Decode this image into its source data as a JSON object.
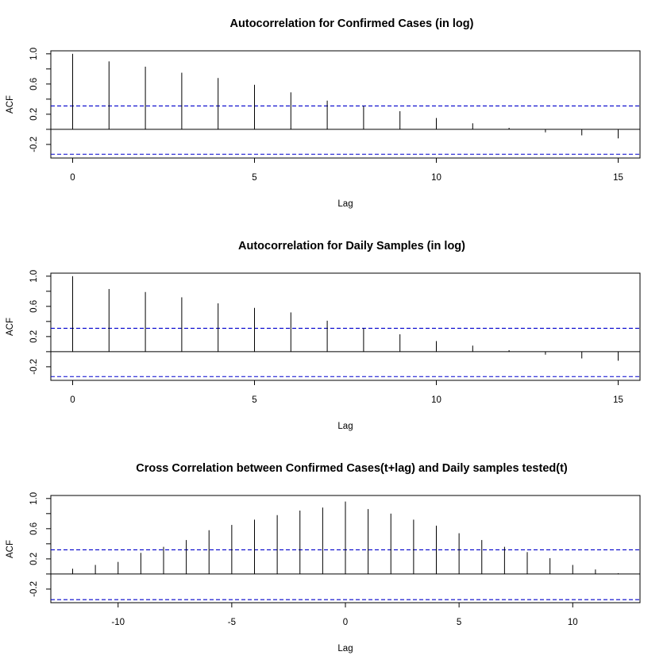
{
  "chart_data": [
    {
      "type": "bar",
      "subtype": "acf-stem",
      "title": "Autocorrelation for Confirmed Cases (in log)",
      "xlabel": "Lag",
      "ylabel": "ACF",
      "xlim": [
        -0.6,
        15.6
      ],
      "ylim": [
        -0.38,
        1.04
      ],
      "xticks": [
        0,
        5,
        10,
        15
      ],
      "xtick_labels": [
        "0",
        "5",
        "10",
        "15"
      ],
      "yticks": [
        -0.2,
        0.2,
        0.6,
        1.0
      ],
      "ytick_labels": [
        "-0.2",
        "0.2",
        "0.6",
        "1.0"
      ],
      "confidence_band": [
        0.31,
        -0.33
      ],
      "x": [
        0,
        1,
        2,
        3,
        4,
        5,
        6,
        7,
        8,
        9,
        10,
        11,
        12,
        13,
        14,
        15
      ],
      "values": [
        1.0,
        0.9,
        0.83,
        0.75,
        0.68,
        0.59,
        0.49,
        0.38,
        0.31,
        0.24,
        0.15,
        0.08,
        0.02,
        -0.04,
        -0.08,
        -0.12
      ]
    },
    {
      "type": "bar",
      "subtype": "acf-stem",
      "title": "Autocorrelation for Daily Samples (in log)",
      "xlabel": "Lag",
      "ylabel": "ACF",
      "xlim": [
        -0.6,
        15.6
      ],
      "ylim": [
        -0.38,
        1.04
      ],
      "xticks": [
        0,
        5,
        10,
        15
      ],
      "xtick_labels": [
        "0",
        "5",
        "10",
        "15"
      ],
      "yticks": [
        -0.2,
        0.2,
        0.6,
        1.0
      ],
      "ytick_labels": [
        "-0.2",
        "0.2",
        "0.6",
        "1.0"
      ],
      "confidence_band": [
        0.31,
        -0.33
      ],
      "x": [
        0,
        1,
        2,
        3,
        4,
        5,
        6,
        7,
        8,
        9,
        10,
        11,
        12,
        13,
        14,
        15
      ],
      "values": [
        1.0,
        0.83,
        0.79,
        0.72,
        0.64,
        0.58,
        0.52,
        0.41,
        0.31,
        0.23,
        0.14,
        0.08,
        0.02,
        -0.04,
        -0.09,
        -0.12
      ]
    },
    {
      "type": "bar",
      "subtype": "ccf-stem",
      "title": "Cross Correlation between Confirmed Cases(t+lag) and Daily samples tested(t)",
      "xlabel": "Lag",
      "ylabel": "ACF",
      "xlim": [
        -12.96,
        12.96
      ],
      "ylim": [
        -0.38,
        1.04
      ],
      "xticks": [
        -10,
        -5,
        0,
        5,
        10
      ],
      "xtick_labels": [
        "-10",
        "-5",
        "0",
        "5",
        "10"
      ],
      "yticks": [
        -0.2,
        0.2,
        0.6,
        1.0
      ],
      "ytick_labels": [
        "-0.2",
        "0.2",
        "0.6",
        "1.0"
      ],
      "confidence_band": [
        0.32,
        -0.34
      ],
      "x": [
        -12,
        -11,
        -10,
        -9,
        -8,
        -7,
        -6,
        -5,
        -4,
        -3,
        -2,
        -1,
        0,
        1,
        2,
        3,
        4,
        5,
        6,
        7,
        8,
        9,
        10,
        11,
        12
      ],
      "values": [
        0.07,
        0.12,
        0.16,
        0.28,
        0.36,
        0.45,
        0.58,
        0.65,
        0.72,
        0.78,
        0.84,
        0.88,
        0.96,
        0.86,
        0.8,
        0.72,
        0.64,
        0.54,
        0.45,
        0.36,
        0.29,
        0.21,
        0.12,
        0.06,
        0.01
      ]
    }
  ],
  "colors": {
    "stem": "#000000",
    "confidence_line": "#0000cc",
    "axis": "#000000"
  }
}
